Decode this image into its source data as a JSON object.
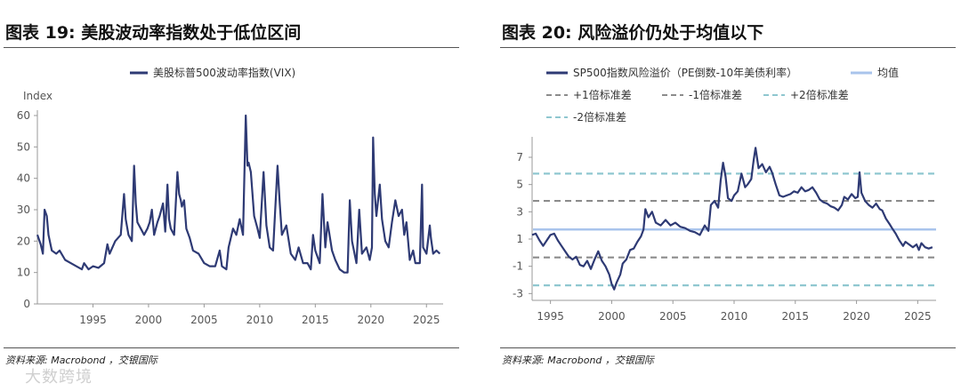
{
  "left": {
    "title": "图表 19: 美股波动率指数处于低位区间",
    "source": "资料来源: Macrobond ，交银国际"
  },
  "right": {
    "title": "图表 20: 风险溢价仍处于均值以下",
    "source": "资料来源: Macrobond ，交银国际"
  },
  "watermark": "大数跨境",
  "colors": {
    "series": "#2e3a74",
    "mean": "#a9c4ec",
    "sd1": "#8c8c8c",
    "sd2": "#8fc7d0"
  },
  "chart_data": [
    {
      "type": "line",
      "ylabel": "Index",
      "legend": "美股标普500波动率指数(VIX)",
      "legend_position": "top-center",
      "xlim": [
        1990,
        2026.5
      ],
      "ylim": [
        0,
        60
      ],
      "x_ticks": [
        1995,
        2000,
        2005,
        2010,
        2015,
        2020,
        2025
      ],
      "y_ticks": [
        0,
        10,
        20,
        30,
        40,
        50,
        60
      ],
      "series": [
        {
          "name": "美股标普500波动率指数(VIX)",
          "points": [
            [
              1990.0,
              22
            ],
            [
              1990.3,
              19
            ],
            [
              1990.5,
              16
            ],
            [
              1990.65,
              30
            ],
            [
              1990.85,
              28
            ],
            [
              1991.0,
              22
            ],
            [
              1991.3,
              17
            ],
            [
              1991.7,
              16
            ],
            [
              1992.0,
              17
            ],
            [
              1992.5,
              14
            ],
            [
              1993.0,
              13
            ],
            [
              1993.5,
              12
            ],
            [
              1994.0,
              11
            ],
            [
              1994.2,
              13
            ],
            [
              1994.4,
              12
            ],
            [
              1994.6,
              11
            ],
            [
              1995.0,
              12
            ],
            [
              1995.5,
              11.5
            ],
            [
              1996.0,
              13
            ],
            [
              1996.3,
              19
            ],
            [
              1996.5,
              16
            ],
            [
              1997.0,
              20
            ],
            [
              1997.5,
              22
            ],
            [
              1997.8,
              35
            ],
            [
              1997.95,
              27
            ],
            [
              1998.2,
              22
            ],
            [
              1998.5,
              20
            ],
            [
              1998.7,
              44
            ],
            [
              1998.85,
              32
            ],
            [
              1999.0,
              26
            ],
            [
              1999.3,
              24
            ],
            [
              1999.6,
              22
            ],
            [
              1999.9,
              24
            ],
            [
              2000.1,
              26
            ],
            [
              2000.3,
              30
            ],
            [
              2000.5,
              22
            ],
            [
              2000.8,
              26
            ],
            [
              2001.0,
              28
            ],
            [
              2001.3,
              32
            ],
            [
              2001.5,
              23
            ],
            [
              2001.7,
              38
            ],
            [
              2001.85,
              27
            ],
            [
              2002.0,
              24
            ],
            [
              2002.3,
              22
            ],
            [
              2002.6,
              42
            ],
            [
              2002.75,
              35
            ],
            [
              2002.9,
              33
            ],
            [
              2003.0,
              31
            ],
            [
              2003.2,
              33
            ],
            [
              2003.4,
              24
            ],
            [
              2003.7,
              21
            ],
            [
              2004.0,
              17
            ],
            [
              2004.5,
              16
            ],
            [
              2005.0,
              13
            ],
            [
              2005.5,
              12
            ],
            [
              2006.0,
              12
            ],
            [
              2006.4,
              17
            ],
            [
              2006.6,
              12
            ],
            [
              2007.0,
              11
            ],
            [
              2007.2,
              18
            ],
            [
              2007.6,
              24
            ],
            [
              2007.9,
              22
            ],
            [
              2008.2,
              27
            ],
            [
              2008.5,
              22
            ],
            [
              2008.75,
              60
            ],
            [
              2008.9,
              44
            ],
            [
              2009.0,
              45
            ],
            [
              2009.2,
              42
            ],
            [
              2009.5,
              28
            ],
            [
              2009.8,
              24
            ],
            [
              2010.0,
              21
            ],
            [
              2010.35,
              42
            ],
            [
              2010.6,
              25
            ],
            [
              2010.9,
              18
            ],
            [
              2011.2,
              17
            ],
            [
              2011.6,
              44
            ],
            [
              2011.8,
              32
            ],
            [
              2012.0,
              22
            ],
            [
              2012.4,
              25
            ],
            [
              2012.8,
              16
            ],
            [
              2013.2,
              14
            ],
            [
              2013.5,
              18
            ],
            [
              2013.9,
              13
            ],
            [
              2014.3,
              13
            ],
            [
              2014.6,
              11
            ],
            [
              2014.8,
              22
            ],
            [
              2015.0,
              17
            ],
            [
              2015.4,
              13
            ],
            [
              2015.65,
              35
            ],
            [
              2015.9,
              18
            ],
            [
              2016.1,
              26
            ],
            [
              2016.5,
              17
            ],
            [
              2016.8,
              14
            ],
            [
              2017.2,
              11
            ],
            [
              2017.6,
              10
            ],
            [
              2017.9,
              10
            ],
            [
              2018.1,
              33
            ],
            [
              2018.3,
              20
            ],
            [
              2018.7,
              13
            ],
            [
              2018.95,
              30
            ],
            [
              2019.2,
              16
            ],
            [
              2019.6,
              18
            ],
            [
              2019.9,
              14
            ],
            [
              2020.1,
              18
            ],
            [
              2020.2,
              53
            ],
            [
              2020.35,
              35
            ],
            [
              2020.5,
              28
            ],
            [
              2020.8,
              38
            ],
            [
              2021.0,
              27
            ],
            [
              2021.3,
              20
            ],
            [
              2021.6,
              18
            ],
            [
              2021.9,
              26
            ],
            [
              2022.2,
              33
            ],
            [
              2022.5,
              28
            ],
            [
              2022.8,
              30
            ],
            [
              2023.0,
              22
            ],
            [
              2023.2,
              26
            ],
            [
              2023.5,
              14
            ],
            [
              2023.8,
              17
            ],
            [
              2024.0,
              13
            ],
            [
              2024.4,
              13
            ],
            [
              2024.6,
              38
            ],
            [
              2024.7,
              18
            ],
            [
              2025.0,
              16
            ],
            [
              2025.3,
              25
            ],
            [
              2025.4,
              21
            ],
            [
              2025.6,
              16
            ],
            [
              2025.9,
              17
            ],
            [
              2026.2,
              16
            ]
          ]
        }
      ]
    },
    {
      "type": "line",
      "legend_position": "top",
      "xlim": [
        1993.5,
        2026.5
      ],
      "ylim": [
        -3.5,
        8.5
      ],
      "x_ticks": [
        1995,
        2000,
        2005,
        2010,
        2015,
        2020,
        2025
      ],
      "y_ticks": [
        -3,
        -1,
        1,
        3,
        5,
        7
      ],
      "series": [
        {
          "name": "SP500指数风险溢价（PE倒数-10年美债利率）",
          "points": [
            [
              1993.5,
              1.3
            ],
            [
              1993.8,
              1.4
            ],
            [
              1994.1,
              0.9
            ],
            [
              1994.4,
              0.5
            ],
            [
              1994.7,
              0.9
            ],
            [
              1995.0,
              1.3
            ],
            [
              1995.3,
              1.4
            ],
            [
              1995.6,
              0.9
            ],
            [
              1995.9,
              0.5
            ],
            [
              1996.2,
              0.1
            ],
            [
              1996.5,
              -0.3
            ],
            [
              1996.8,
              -0.5
            ],
            [
              1997.1,
              -0.3
            ],
            [
              1997.4,
              -0.9
            ],
            [
              1997.7,
              -1.0
            ],
            [
              1998.0,
              -0.6
            ],
            [
              1998.3,
              -1.2
            ],
            [
              1998.6,
              -0.5
            ],
            [
              1998.9,
              0.1
            ],
            [
              1999.2,
              -0.6
            ],
            [
              1999.5,
              -1.0
            ],
            [
              1999.8,
              -1.6
            ],
            [
              2000.0,
              -2.3
            ],
            [
              2000.2,
              -2.7
            ],
            [
              2000.4,
              -2.2
            ],
            [
              2000.7,
              -1.6
            ],
            [
              2000.9,
              -0.8
            ],
            [
              2001.2,
              -0.5
            ],
            [
              2001.5,
              0.2
            ],
            [
              2001.8,
              0.3
            ],
            [
              2002.1,
              0.8
            ],
            [
              2002.4,
              1.2
            ],
            [
              2002.6,
              1.7
            ],
            [
              2002.75,
              3.2
            ],
            [
              2003.0,
              2.6
            ],
            [
              2003.3,
              3.0
            ],
            [
              2003.6,
              2.2
            ],
            [
              2004.0,
              2.0
            ],
            [
              2004.4,
              2.4
            ],
            [
              2004.8,
              2.0
            ],
            [
              2005.2,
              2.2
            ],
            [
              2005.6,
              1.9
            ],
            [
              2006.0,
              1.8
            ],
            [
              2006.4,
              1.6
            ],
            [
              2006.8,
              1.5
            ],
            [
              2007.2,
              1.3
            ],
            [
              2007.6,
              2.0
            ],
            [
              2007.9,
              1.6
            ],
            [
              2008.1,
              3.5
            ],
            [
              2008.4,
              3.8
            ],
            [
              2008.7,
              3.3
            ],
            [
              2008.9,
              5.3
            ],
            [
              2009.1,
              6.6
            ],
            [
              2009.3,
              5.6
            ],
            [
              2009.5,
              4.0
            ],
            [
              2009.8,
              3.8
            ],
            [
              2010.0,
              4.2
            ],
            [
              2010.3,
              4.5
            ],
            [
              2010.6,
              5.8
            ],
            [
              2010.9,
              4.8
            ],
            [
              2011.1,
              5.0
            ],
            [
              2011.4,
              5.4
            ],
            [
              2011.6,
              6.8
            ],
            [
              2011.75,
              7.7
            ],
            [
              2012.0,
              6.2
            ],
            [
              2012.3,
              6.5
            ],
            [
              2012.6,
              5.9
            ],
            [
              2012.9,
              6.3
            ],
            [
              2013.1,
              5.9
            ],
            [
              2013.4,
              5.0
            ],
            [
              2013.7,
              4.2
            ],
            [
              2014.0,
              4.1
            ],
            [
              2014.3,
              4.2
            ],
            [
              2014.6,
              4.3
            ],
            [
              2014.9,
              4.5
            ],
            [
              2015.2,
              4.4
            ],
            [
              2015.5,
              4.8
            ],
            [
              2015.8,
              4.5
            ],
            [
              2016.1,
              4.6
            ],
            [
              2016.4,
              4.8
            ],
            [
              2016.7,
              4.4
            ],
            [
              2017.0,
              3.9
            ],
            [
              2017.3,
              3.7
            ],
            [
              2017.6,
              3.6
            ],
            [
              2017.9,
              3.4
            ],
            [
              2018.2,
              3.3
            ],
            [
              2018.5,
              3.1
            ],
            [
              2018.8,
              3.5
            ],
            [
              2019.0,
              4.1
            ],
            [
              2019.3,
              3.9
            ],
            [
              2019.6,
              4.3
            ],
            [
              2019.9,
              4.0
            ],
            [
              2020.1,
              4.1
            ],
            [
              2020.25,
              5.9
            ],
            [
              2020.4,
              4.4
            ],
            [
              2020.7,
              3.8
            ],
            [
              2021.0,
              3.5
            ],
            [
              2021.3,
              3.3
            ],
            [
              2021.6,
              3.6
            ],
            [
              2021.9,
              3.2
            ],
            [
              2022.1,
              3.1
            ],
            [
              2022.4,
              2.5
            ],
            [
              2022.7,
              2.1
            ],
            [
              2022.9,
              1.8
            ],
            [
              2023.2,
              1.4
            ],
            [
              2023.5,
              0.9
            ],
            [
              2023.8,
              0.5
            ],
            [
              2024.0,
              0.8
            ],
            [
              2024.3,
              0.6
            ],
            [
              2024.6,
              0.4
            ],
            [
              2024.9,
              0.6
            ],
            [
              2025.1,
              0.2
            ],
            [
              2025.3,
              0.7
            ],
            [
              2025.6,
              0.4
            ],
            [
              2025.9,
              0.3
            ],
            [
              2026.2,
              0.4
            ]
          ]
        }
      ],
      "reference_lines": [
        {
          "name": "均值",
          "value": 1.7,
          "style": "solid",
          "color": "#a9c4ec"
        },
        {
          "name": "+1倍标准差",
          "value": 3.8,
          "style": "dashed",
          "color": "#8c8c8c"
        },
        {
          "name": "-1倍标准差",
          "value": -0.35,
          "style": "dashed",
          "color": "#8c8c8c"
        },
        {
          "name": "+2倍标准差",
          "value": 5.8,
          "style": "dashed",
          "color": "#8fc7d0"
        },
        {
          "name": "-2倍标准差",
          "value": -2.4,
          "style": "dashed",
          "color": "#8fc7d0"
        }
      ]
    }
  ]
}
